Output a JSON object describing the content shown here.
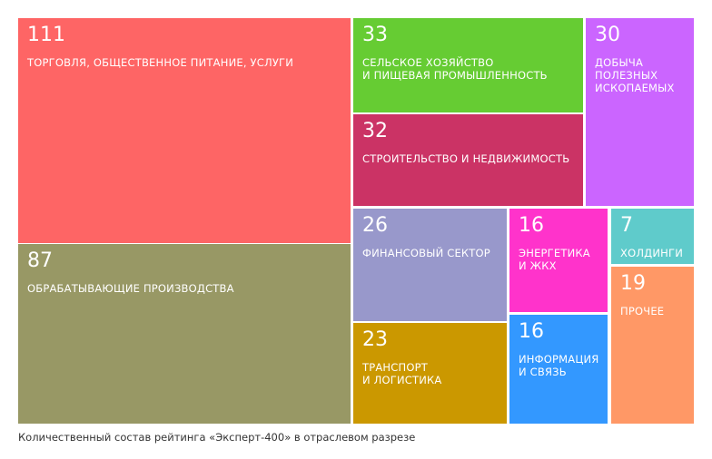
{
  "chart_data": {
    "type": "treemap",
    "title": "",
    "caption": "Количественный состав рейтинга «Эксперт-400» в отраслевом разрезе",
    "items": [
      {
        "value": 111,
        "label": "ТОРГОВЛЯ, ОБЩЕСТВЕННОЕ ПИТАНИЕ, УСЛУГИ",
        "color": "#fe6565"
      },
      {
        "value": 87,
        "label": "ОБРАБАТЫВАЮЩИЕ ПРОИЗВОДСТВА",
        "color": "#989865"
      },
      {
        "value": 33,
        "label": "СЕЛЬСКОЕ ХОЗЯЙСТВО\nИ ПИЩЕВАЯ ПРОМЫШЛЕННОСТЬ",
        "color": "#66cc33"
      },
      {
        "value": 32,
        "label": "СТРОИТЕЛЬСТВО И НЕДВИЖИМОСТЬ",
        "color": "#cb3365"
      },
      {
        "value": 30,
        "label": "ДОБЫЧА\nПОЛЕЗНЫХ\nИСКОПАЕМЫХ",
        "color": "#cb65ff"
      },
      {
        "value": 26,
        "label": "ФИНАНСОВЫЙ СЕКТОР",
        "color": "#9898cb"
      },
      {
        "value": 23,
        "label": "ТРАНСПОРТ\nИ ЛОГИСТИКА",
        "color": "#cb9800"
      },
      {
        "value": 16,
        "label": "ЭНЕРГЕТИКА\nИ ЖКХ",
        "color": "#ff33cb"
      },
      {
        "value": 16,
        "label": "ИНФОРМАЦИЯ\nИ СВЯЗЬ",
        "color": "#3398ff"
      },
      {
        "value": 7,
        "label": "ХОЛДИНГИ",
        "color": "#5fcbcb"
      },
      {
        "value": 19,
        "label": "ПРОЧЕЕ",
        "color": "#ff9866"
      }
    ]
  }
}
